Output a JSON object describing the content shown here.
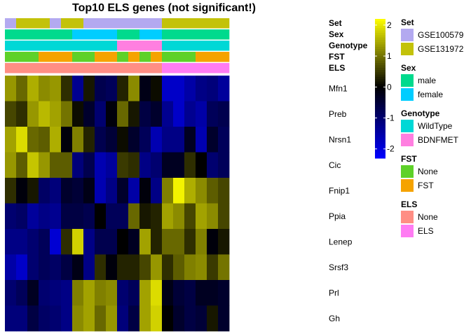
{
  "chart_data": {
    "type": "heatmap",
    "title": "Top10 ELS genes (not significant!)",
    "rows": [
      "Mfn1",
      "Preb",
      "Nrsn1",
      "Cic",
      "Fnip1",
      "Ppia",
      "Lenep",
      "Srsf3",
      "Prl",
      "Gh"
    ],
    "n_columns": 20,
    "values": [
      [
        1.3,
        0.9,
        1.5,
        1.2,
        1.3,
        0.4,
        -1.3,
        0.2,
        -0.7,
        -0.8,
        0.3,
        1.2,
        -0.2,
        0.1,
        -1.8,
        -1.8,
        -1.5,
        -1.2,
        -1.1,
        -1.4
      ],
      [
        0.6,
        0.4,
        1.3,
        1.6,
        1.4,
        1.0,
        0.1,
        -0.4,
        -1.0,
        -0.1,
        0.9,
        0.2,
        -0.6,
        -0.4,
        -1.3,
        -1.8,
        -1.3,
        -1.5,
        -0.8,
        -0.7
      ],
      [
        1.4,
        1.9,
        0.9,
        0.8,
        1.5,
        -0.1,
        1.1,
        0.3,
        -0.7,
        -0.5,
        0.1,
        -0.4,
        -0.8,
        -1.6,
        -1.2,
        -1.2,
        -0.3,
        -1.6,
        -0.4,
        -0.8
      ],
      [
        1.3,
        0.8,
        1.7,
        1.3,
        0.8,
        0.8,
        -1.1,
        -0.7,
        -1.6,
        -1.4,
        0.5,
        0.4,
        -1.2,
        -1.0,
        -0.3,
        -0.3,
        0.4,
        0.0,
        -1.0,
        -0.8
      ],
      [
        0.4,
        -0.1,
        0.2,
        -0.9,
        -1.1,
        -0.4,
        -0.5,
        -0.2,
        -1.6,
        -1.2,
        -0.4,
        -1.5,
        -0.1,
        -1.2,
        1.1,
        2.1,
        1.5,
        1.2,
        0.8,
        0.6
      ],
      [
        -1.0,
        -0.9,
        -1.4,
        -1.2,
        -1.3,
        -0.6,
        -0.6,
        -0.7,
        0.0,
        -0.8,
        -0.8,
        0.9,
        0.2,
        0.3,
        1.4,
        1.2,
        0.6,
        1.4,
        1.2,
        0.6
      ],
      [
        -1.2,
        -1.2,
        -1.0,
        -0.8,
        -1.9,
        0.4,
        1.8,
        -1.2,
        -0.7,
        -0.7,
        0.0,
        -0.3,
        1.4,
        0.3,
        0.9,
        0.9,
        0.4,
        1.1,
        -0.1,
        0.2
      ],
      [
        -1.5,
        -1.8,
        -1.0,
        -0.8,
        -0.9,
        -0.6,
        -0.2,
        -1.2,
        0.4,
        -0.1,
        0.3,
        0.3,
        0.6,
        1.3,
        0.4,
        0.8,
        1.1,
        1.2,
        0.5,
        1.0
      ],
      [
        -1.0,
        -0.8,
        -0.3,
        -1.0,
        -1.1,
        -1.2,
        1.1,
        1.4,
        1.1,
        1.2,
        -1.0,
        -0.8,
        1.4,
        1.9,
        -0.2,
        -0.5,
        -0.6,
        -0.3,
        -0.3,
        -0.4
      ],
      [
        -1.1,
        -1.1,
        -0.6,
        -0.9,
        -1.0,
        -1.2,
        1.2,
        1.4,
        0.9,
        1.3,
        -1.1,
        -0.6,
        1.4,
        1.8,
        0.0,
        -0.4,
        -0.6,
        -0.5,
        0.2,
        -0.4
      ]
    ],
    "annotations": [
      {
        "name": "Set",
        "levels": [
          "GSE100579",
          "GSE131972",
          "GSE131972",
          "GSE131972",
          "GSE100579",
          "GSE131972",
          "GSE131972",
          "GSE100579",
          "GSE100579",
          "GSE100579",
          "GSE100579",
          "GSE100579",
          "GSE100579",
          "GSE100579",
          "GSE131972",
          "GSE131972",
          "GSE131972",
          "GSE131972",
          "GSE131972",
          "GSE131972"
        ]
      },
      {
        "name": "Sex",
        "levels": [
          "male",
          "male",
          "male",
          "male",
          "male",
          "male",
          "female",
          "female",
          "female",
          "female",
          "male",
          "male",
          "female",
          "female",
          "male",
          "male",
          "male",
          "male",
          "male",
          "male"
        ]
      },
      {
        "name": "Genotype",
        "levels": [
          "WildType",
          "WildType",
          "WildType",
          "WildType",
          "WildType",
          "WildType",
          "WildType",
          "WildType",
          "WildType",
          "WildType",
          "BDNFMET",
          "BDNFMET",
          "BDNFMET",
          "BDNFMET",
          "WildType",
          "WildType",
          "WildType",
          "WildType",
          "WildType",
          "WildType"
        ]
      },
      {
        "name": "FST",
        "levels": [
          "None",
          "None",
          "None",
          "FST",
          "FST",
          "FST",
          "None",
          "None",
          "FST",
          "FST",
          "None",
          "FST",
          "None",
          "FST",
          "None",
          "None",
          "None",
          "FST",
          "FST",
          "FST"
        ]
      },
      {
        "name": "ELS",
        "levels": [
          "None",
          "None",
          "None",
          "None",
          "None",
          "None",
          "None",
          "None",
          "None",
          "None",
          "None",
          "None",
          "None",
          "None",
          "ELS",
          "ELS",
          "ELS",
          "ELS",
          "ELS",
          "ELS"
        ]
      }
    ],
    "colorbar": {
      "min": -2.3,
      "max": 2.2,
      "ticks": [
        2,
        1,
        0,
        -1,
        -2
      ],
      "colors": [
        "#0000ff",
        "#000000",
        "#ffff00"
      ]
    },
    "legends": [
      {
        "title": "Set",
        "items": [
          {
            "label": "GSE100579",
            "color": "#b3a9f0"
          },
          {
            "label": "GSE131972",
            "color": "#c3c20a"
          }
        ]
      },
      {
        "title": "Sex",
        "items": [
          {
            "label": "male",
            "color": "#00da8d"
          },
          {
            "label": "female",
            "color": "#00cdff"
          }
        ]
      },
      {
        "title": "Genotype",
        "items": [
          {
            "label": "WildType",
            "color": "#00d8d6"
          },
          {
            "label": "BDNFMET",
            "color": "#ff7fe0"
          }
        ]
      },
      {
        "title": "FST",
        "items": [
          {
            "label": "None",
            "color": "#5ed129"
          },
          {
            "label": "FST",
            "color": "#f5a300"
          }
        ]
      },
      {
        "title": "ELS",
        "items": [
          {
            "label": "None",
            "color": "#ff8e84"
          },
          {
            "label": "ELS",
            "color": "#ff7cf3"
          }
        ]
      }
    ]
  }
}
